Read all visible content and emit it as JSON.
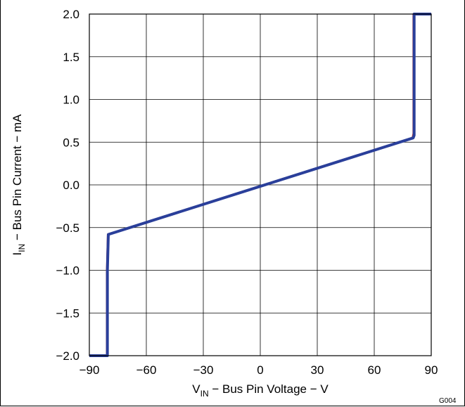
{
  "chart_data": {
    "type": "line",
    "title": "",
    "xlabel": {
      "main": "V",
      "sub": "IN",
      "rest": " − Bus Pin Voltage − V"
    },
    "ylabel": {
      "main": "I",
      "sub": "IN",
      "rest": " − Bus Pin Current − mA"
    },
    "xlim": [
      -90,
      90
    ],
    "ylim": [
      -2.0,
      2.0
    ],
    "x_ticks": [
      -90,
      -60,
      -30,
      0,
      30,
      60,
      90
    ],
    "x_tick_labels": [
      "−90",
      "−60",
      "−30",
      "0",
      "30",
      "60",
      "90"
    ],
    "y_ticks": [
      2.0,
      1.5,
      1.0,
      0.5,
      0.0,
      -0.5,
      -1.0,
      -1.5,
      -2.0
    ],
    "y_tick_labels": [
      "2.0",
      "1.5",
      "1.0",
      "0.5",
      "0.0",
      "−0.5",
      "−1.0",
      "−1.5",
      "−2.0"
    ],
    "grid": true,
    "figure_id": "G004",
    "series": [
      {
        "color": "#2a3f9a",
        "x": [
          -90,
          -80.5,
          -80.5,
          -80,
          80.5,
          81,
          81,
          90
        ],
        "y": [
          -2.0,
          -2.0,
          -1.0,
          -0.58,
          0.55,
          0.58,
          2.0,
          2.0
        ]
      },
      {
        "color": "#c0302a",
        "x": [
          -90,
          -80.7,
          -80.7,
          -80.2,
          80.2,
          80.7,
          80.7,
          90
        ],
        "y": [
          -2.0,
          -2.0,
          -1.0,
          -0.58,
          0.55,
          0.6,
          2.0,
          2.0
        ]
      }
    ]
  }
}
